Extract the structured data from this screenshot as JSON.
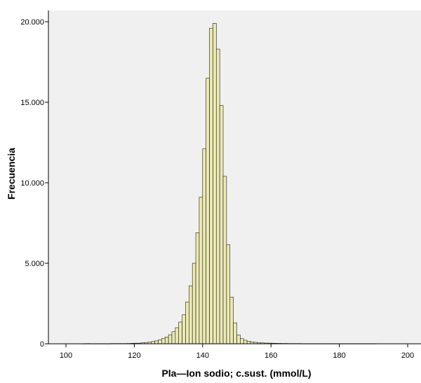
{
  "chart_data": {
    "type": "bar",
    "title": "",
    "xlabel": "Pla—Ion sodio; c.sust. (mmol/L)",
    "ylabel": "Frecuencia",
    "xlim": [
      93,
      600
    ],
    "ylim": [
      0,
      20000
    ],
    "x_ticks": [
      100,
      120,
      140,
      160,
      180,
      200
    ],
    "x_tick_labels": [
      "100",
      "120",
      "140",
      "160",
      "180",
      "200"
    ],
    "y_ticks": [
      0,
      5000,
      10000,
      15000,
      20000
    ],
    "y_tick_labels": [
      "0",
      "5.000",
      "10.000",
      "15.000",
      "20.000"
    ],
    "grid": false,
    "legend": "none",
    "bin_width": 1,
    "bin_starts": [
      105,
      106,
      107,
      108,
      109,
      110,
      111,
      112,
      113,
      114,
      115,
      116,
      117,
      118,
      119,
      120,
      121,
      122,
      123,
      124,
      125,
      126,
      127,
      128,
      129,
      130,
      131,
      132,
      133,
      134,
      135,
      136,
      137,
      138,
      139,
      140,
      141,
      142,
      143,
      144,
      145,
      146,
      147,
      148,
      149,
      150,
      151,
      152,
      153,
      154,
      155,
      156,
      157,
      158,
      159,
      160,
      161,
      162,
      163,
      164,
      165,
      166,
      167,
      168,
      169,
      170,
      171,
      172,
      173,
      174,
      175,
      176,
      177,
      178,
      179,
      180,
      181,
      182,
      183,
      184,
      185,
      186,
      187,
      188,
      189,
      190
    ],
    "values": [
      10,
      15,
      10,
      10,
      10,
      10,
      10,
      10,
      15,
      15,
      15,
      15,
      15,
      20,
      30,
      35,
      40,
      60,
      80,
      100,
      140,
      180,
      250,
      330,
      420,
      560,
      750,
      1000,
      1350,
      1800,
      2600,
      3600,
      5000,
      6900,
      9100,
      12100,
      16500,
      19600,
      19900,
      18300,
      14800,
      10400,
      6150,
      2900,
      1300,
      550,
      320,
      220,
      160,
      120,
      90,
      70,
      55,
      45,
      40,
      35,
      30,
      25,
      20,
      20,
      15,
      15,
      15,
      15,
      10,
      10,
      10,
      10,
      10,
      10,
      10,
      10,
      10,
      10,
      10,
      10,
      10,
      10,
      10,
      10,
      10,
      10,
      10,
      10,
      10,
      10
    ],
    "colors": {
      "bar_fill": "#ece9b2",
      "bar_stroke": "#1a1a1a",
      "plot_background": "#f0f0f0",
      "axis": "#000000",
      "text": "#000000"
    }
  }
}
